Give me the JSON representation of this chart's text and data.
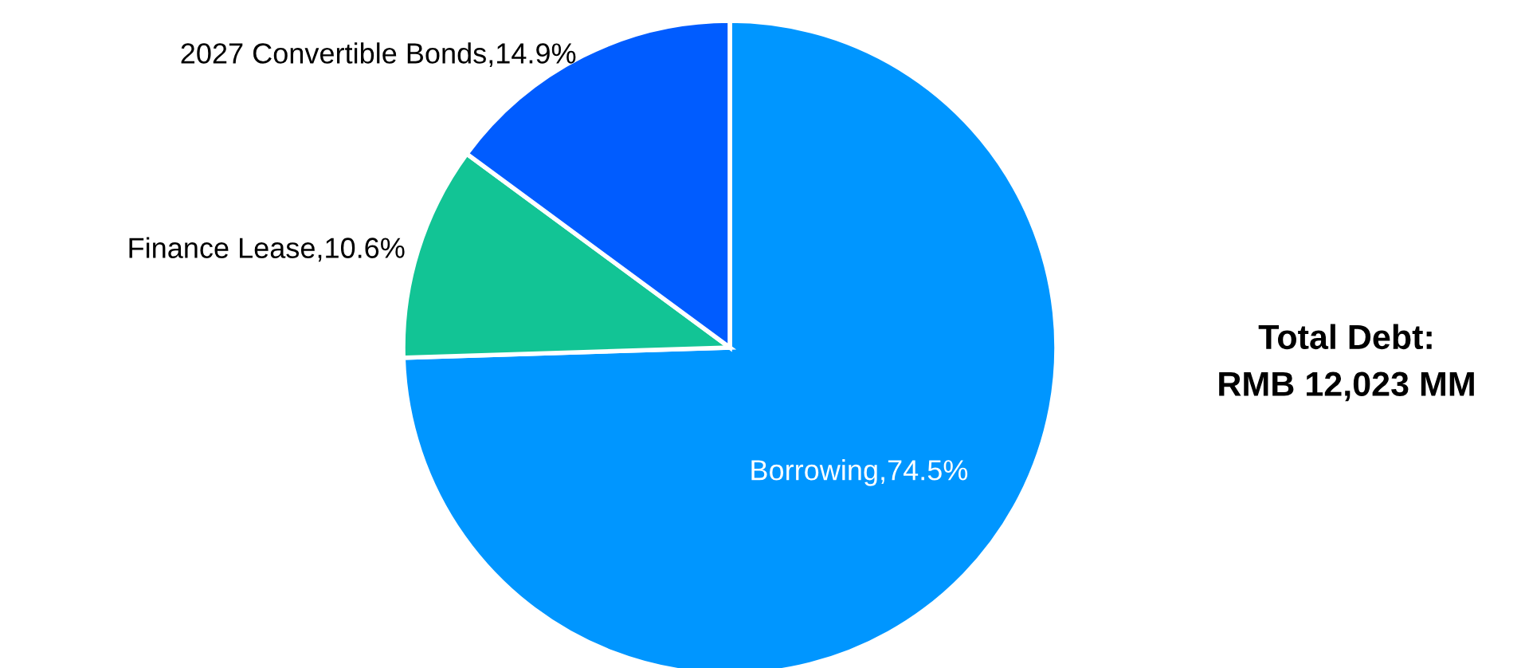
{
  "chart_data": {
    "type": "pie",
    "categories": [
      "Borrowing",
      "Finance Lease",
      "2027 Convertible Bonds"
    ],
    "values": [
      74.5,
      10.6,
      14.9
    ],
    "colors": [
      "#0096ff",
      "#12c495",
      "#005cff"
    ],
    "value_labels": [
      "74.5%",
      "10.6%",
      "14.9%"
    ],
    "annotations": [
      "Total Debt:\nRMB 12,023 MM"
    ]
  }
}
